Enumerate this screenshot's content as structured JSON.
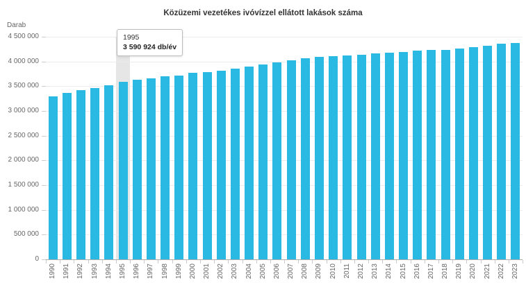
{
  "title": "Közüzemi vezetékes ivóvízzel ellátott lakások száma",
  "y_axis": {
    "unit_label": "Darab"
  },
  "tooltip": {
    "year": "1995",
    "value_label": "3 590 924 db/év"
  },
  "colors": {
    "bar": "#29b9e2",
    "highlight_band": "#e6e6e6",
    "gridline": "#ececec",
    "axis_line": "#ababab",
    "tick": "#cccccc",
    "title_text": "#333333",
    "axis_text": "#666666",
    "tooltip_border": "#bdbdbd",
    "tooltip_bg": "#ffffff"
  },
  "chart_data": {
    "type": "bar",
    "title": "Közüzemi vezetékes ivóvízzel ellátott lakások száma",
    "ylabel": "Darab",
    "unit": "db/év",
    "grid": "horizontal",
    "legend": "none",
    "ylim": [
      0,
      4500000
    ],
    "ytick_interval": 500000,
    "highlight": {
      "category": "1995",
      "value": 3590924
    },
    "categories": [
      "1990",
      "1991",
      "1992",
      "1993",
      "1994",
      "1995",
      "1996",
      "1997",
      "1998",
      "1999",
      "2000",
      "2001",
      "2002",
      "2003",
      "2004",
      "2005",
      "2006",
      "2007",
      "2008",
      "2009",
      "2010",
      "2011",
      "2012",
      "2013",
      "2014",
      "2015",
      "2016",
      "2017",
      "2018",
      "2019",
      "2020",
      "2021",
      "2022",
      "2023"
    ],
    "values": [
      3290000,
      3370000,
      3425000,
      3470000,
      3515000,
      3590924,
      3625000,
      3665000,
      3695000,
      3720000,
      3765000,
      3790000,
      3820000,
      3855000,
      3895000,
      3935000,
      3975000,
      4025000,
      4060000,
      4095000,
      4115000,
      4120000,
      4140000,
      4160000,
      4175000,
      4190000,
      4215000,
      4230000,
      4240000,
      4265000,
      4295000,
      4320000,
      4355000,
      4370000
    ]
  }
}
